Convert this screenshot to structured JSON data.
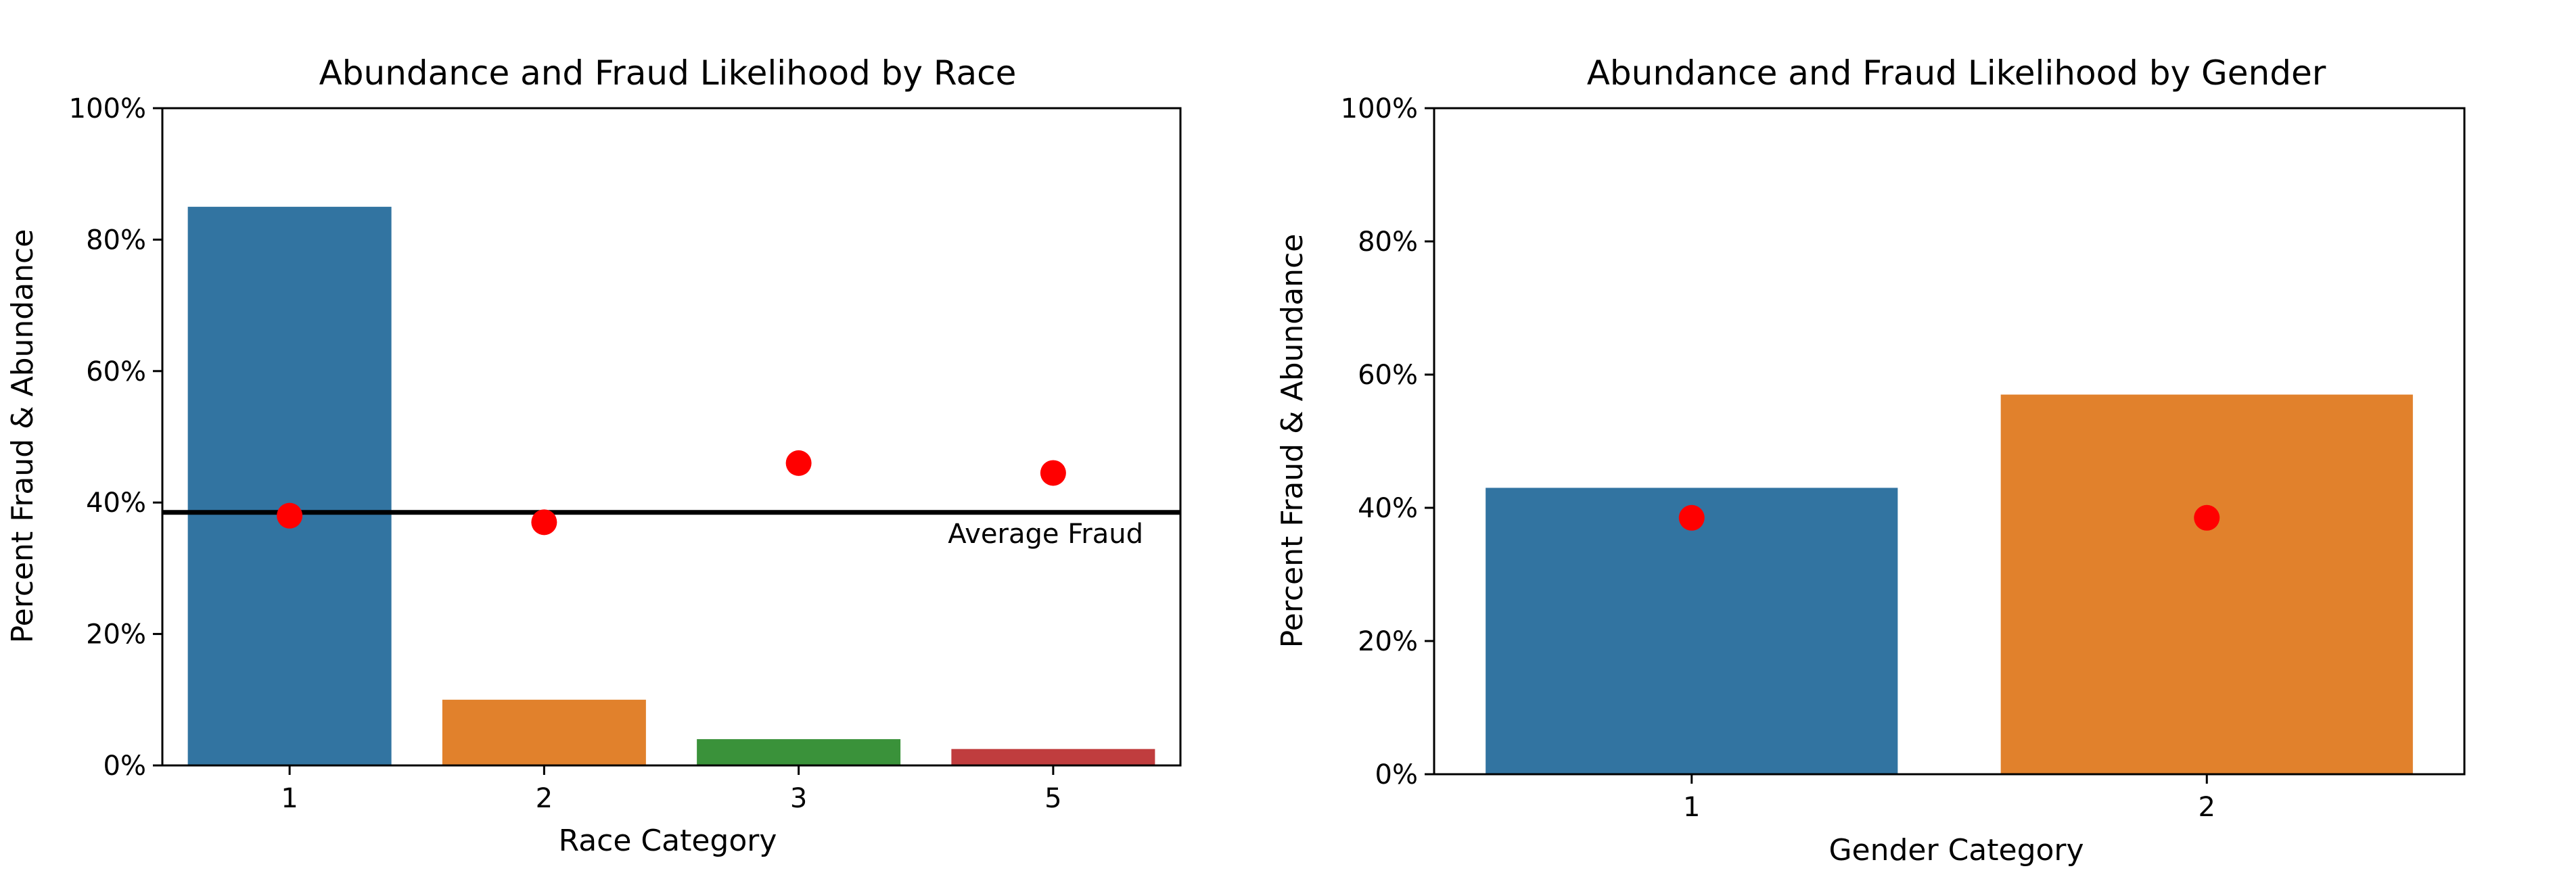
{
  "colors": {
    "blue": "#3274a1",
    "orange": "#e1812c",
    "green": "#3a923a",
    "red_bar": "#c03d3e",
    "fraud_marker": "#ff0000",
    "average_line": "#000000"
  },
  "chart_data": [
    {
      "type": "bar",
      "title": "Abundance and Fraud Likelihood by Race",
      "xlabel": "Race Category",
      "ylabel": "Percent Fraud & Abundance",
      "categories": [
        "1",
        "2",
        "3",
        "5"
      ],
      "bar_colors": [
        "#3274a1",
        "#e1812c",
        "#3a923a",
        "#c03d3e"
      ],
      "series": [
        {
          "name": "Abundance",
          "kind": "bar",
          "values": [
            0.85,
            0.1,
            0.04,
            0.025
          ]
        },
        {
          "name": "Fraud Likelihood",
          "kind": "point",
          "values": [
            0.38,
            0.37,
            0.46,
            0.445
          ]
        }
      ],
      "reference_line": {
        "value": 0.385,
        "label": "Average Fraud"
      },
      "ylim": [
        0,
        1
      ],
      "yticks": [
        "0%",
        "20%",
        "40%",
        "60%",
        "80%",
        "100%"
      ],
      "ytick_values": [
        0,
        0.2,
        0.4,
        0.6,
        0.8,
        1.0
      ],
      "grid": false,
      "legend": "none"
    },
    {
      "type": "bar",
      "title": "Abundance and Fraud Likelihood by Gender",
      "xlabel": "Gender Category",
      "ylabel": "Percent Fraud & Abundance",
      "categories": [
        "1",
        "2"
      ],
      "bar_colors": [
        "#3274a1",
        "#e1812c"
      ],
      "series": [
        {
          "name": "Abundance",
          "kind": "bar",
          "values": [
            0.43,
            0.57
          ]
        },
        {
          "name": "Fraud Likelihood",
          "kind": "point",
          "values": [
            0.385,
            0.385
          ]
        }
      ],
      "ylim": [
        0,
        1
      ],
      "yticks": [
        "0%",
        "20%",
        "40%",
        "60%",
        "80%",
        "100%"
      ],
      "ytick_values": [
        0,
        0.2,
        0.4,
        0.6,
        0.8,
        1.0
      ],
      "grid": false,
      "legend": "none"
    }
  ]
}
